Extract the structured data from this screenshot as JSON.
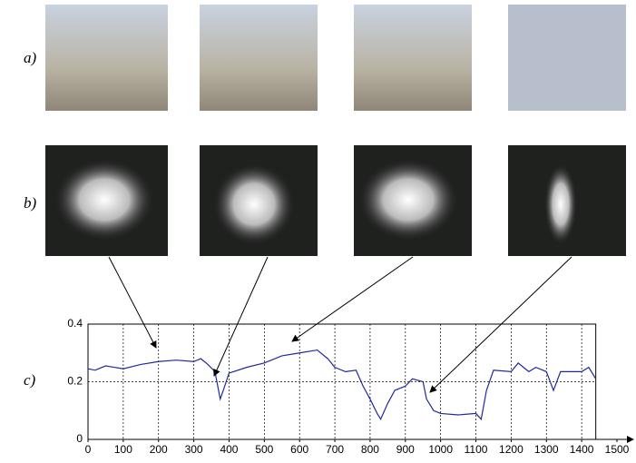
{
  "panel_labels": {
    "a": "a)",
    "b": "b)",
    "c": "c)"
  },
  "chart_data": {
    "type": "line",
    "x": [
      0,
      20,
      50,
      100,
      150,
      200,
      250,
      300,
      320,
      340,
      360,
      375,
      385,
      400,
      450,
      500,
      550,
      600,
      650,
      680,
      700,
      730,
      760,
      780,
      800,
      820,
      830,
      850,
      870,
      900,
      920,
      950,
      960,
      980,
      1000,
      1050,
      1100,
      1115,
      1130,
      1150,
      1200,
      1220,
      1250,
      1270,
      1300,
      1320,
      1340,
      1400,
      1420,
      1440
    ],
    "values": [
      0.245,
      0.24,
      0.255,
      0.245,
      0.26,
      0.27,
      0.275,
      0.27,
      0.28,
      0.26,
      0.235,
      0.14,
      0.175,
      0.23,
      0.25,
      0.265,
      0.29,
      0.3,
      0.31,
      0.28,
      0.25,
      0.235,
      0.24,
      0.185,
      0.14,
      0.09,
      0.07,
      0.125,
      0.17,
      0.185,
      0.21,
      0.2,
      0.14,
      0.1,
      0.09,
      0.085,
      0.09,
      0.07,
      0.17,
      0.24,
      0.235,
      0.265,
      0.235,
      0.25,
      0.235,
      0.17,
      0.235,
      0.235,
      0.25,
      0.21
    ],
    "color": "#1f2a9c",
    "xlim": [
      0,
      1500
    ],
    "ylim": [
      0,
      0.4
    ],
    "xticks": [
      0,
      100,
      200,
      300,
      400,
      500,
      600,
      700,
      800,
      900,
      1000,
      1100,
      1200,
      1300,
      1400,
      1500
    ],
    "yticks": [
      0,
      0.2,
      0.4
    ],
    "grid": true
  }
}
